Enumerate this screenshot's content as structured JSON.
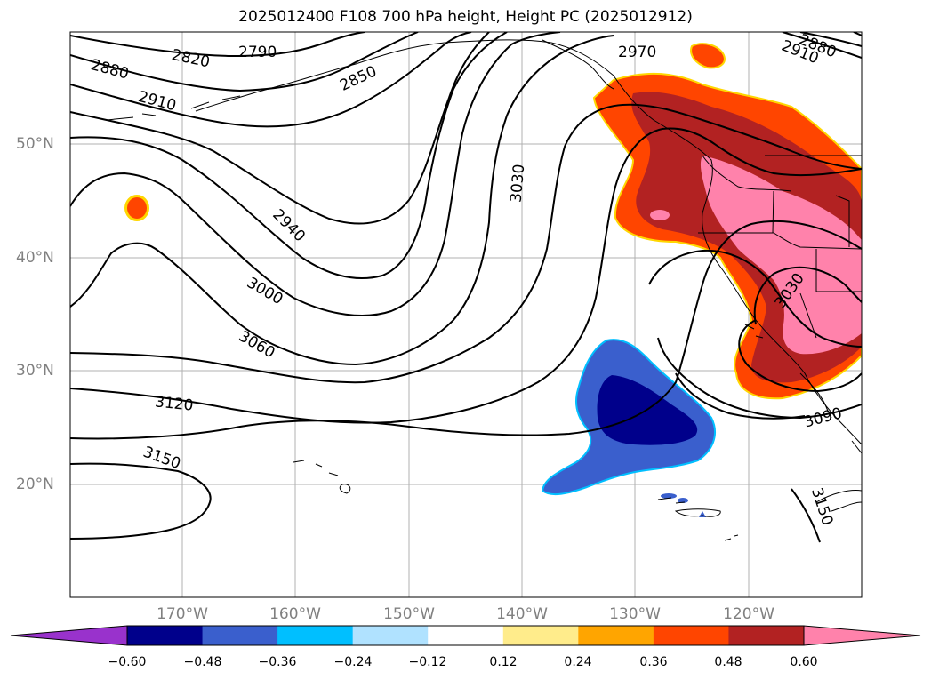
{
  "title": "2025012400 F108 700 hPa height, Height PC (2025012912)",
  "lat_labels": [
    "50°N",
    "40°N",
    "30°N",
    "20°N"
  ],
  "lon_labels": [
    "170°W",
    "160°W",
    "150°W",
    "140°W",
    "130°W",
    "120°W"
  ],
  "contour_labels": {
    "c2790": "2790",
    "c2820": "2820",
    "c2850": "2850",
    "c2880": "2880",
    "c2910a": "2910",
    "c2940": "2940",
    "c2970": "2970",
    "c2888": "2880",
    "c2910b": "2910",
    "c3030a": "3030",
    "c3000": "3000",
    "c3060": "3060",
    "c3030b": "3030",
    "c3120": "3120",
    "c3150a": "3150",
    "c3090": "3090",
    "c3150b": "3150"
  },
  "colorbar": {
    "ticks": [
      "−0.60",
      "−0.48",
      "−0.36",
      "−0.24",
      "−0.12",
      "0.12",
      "0.24",
      "0.36",
      "0.48",
      "0.60"
    ],
    "colors": [
      "#9932CC",
      "#00008B",
      "#3A5FCD",
      "#00BFFF",
      "#B0E2FF",
      "#FFFFFF",
      "#FFEC8B",
      "#FFA500",
      "#FF4500",
      "#B22222",
      "#FF82AB"
    ]
  }
}
